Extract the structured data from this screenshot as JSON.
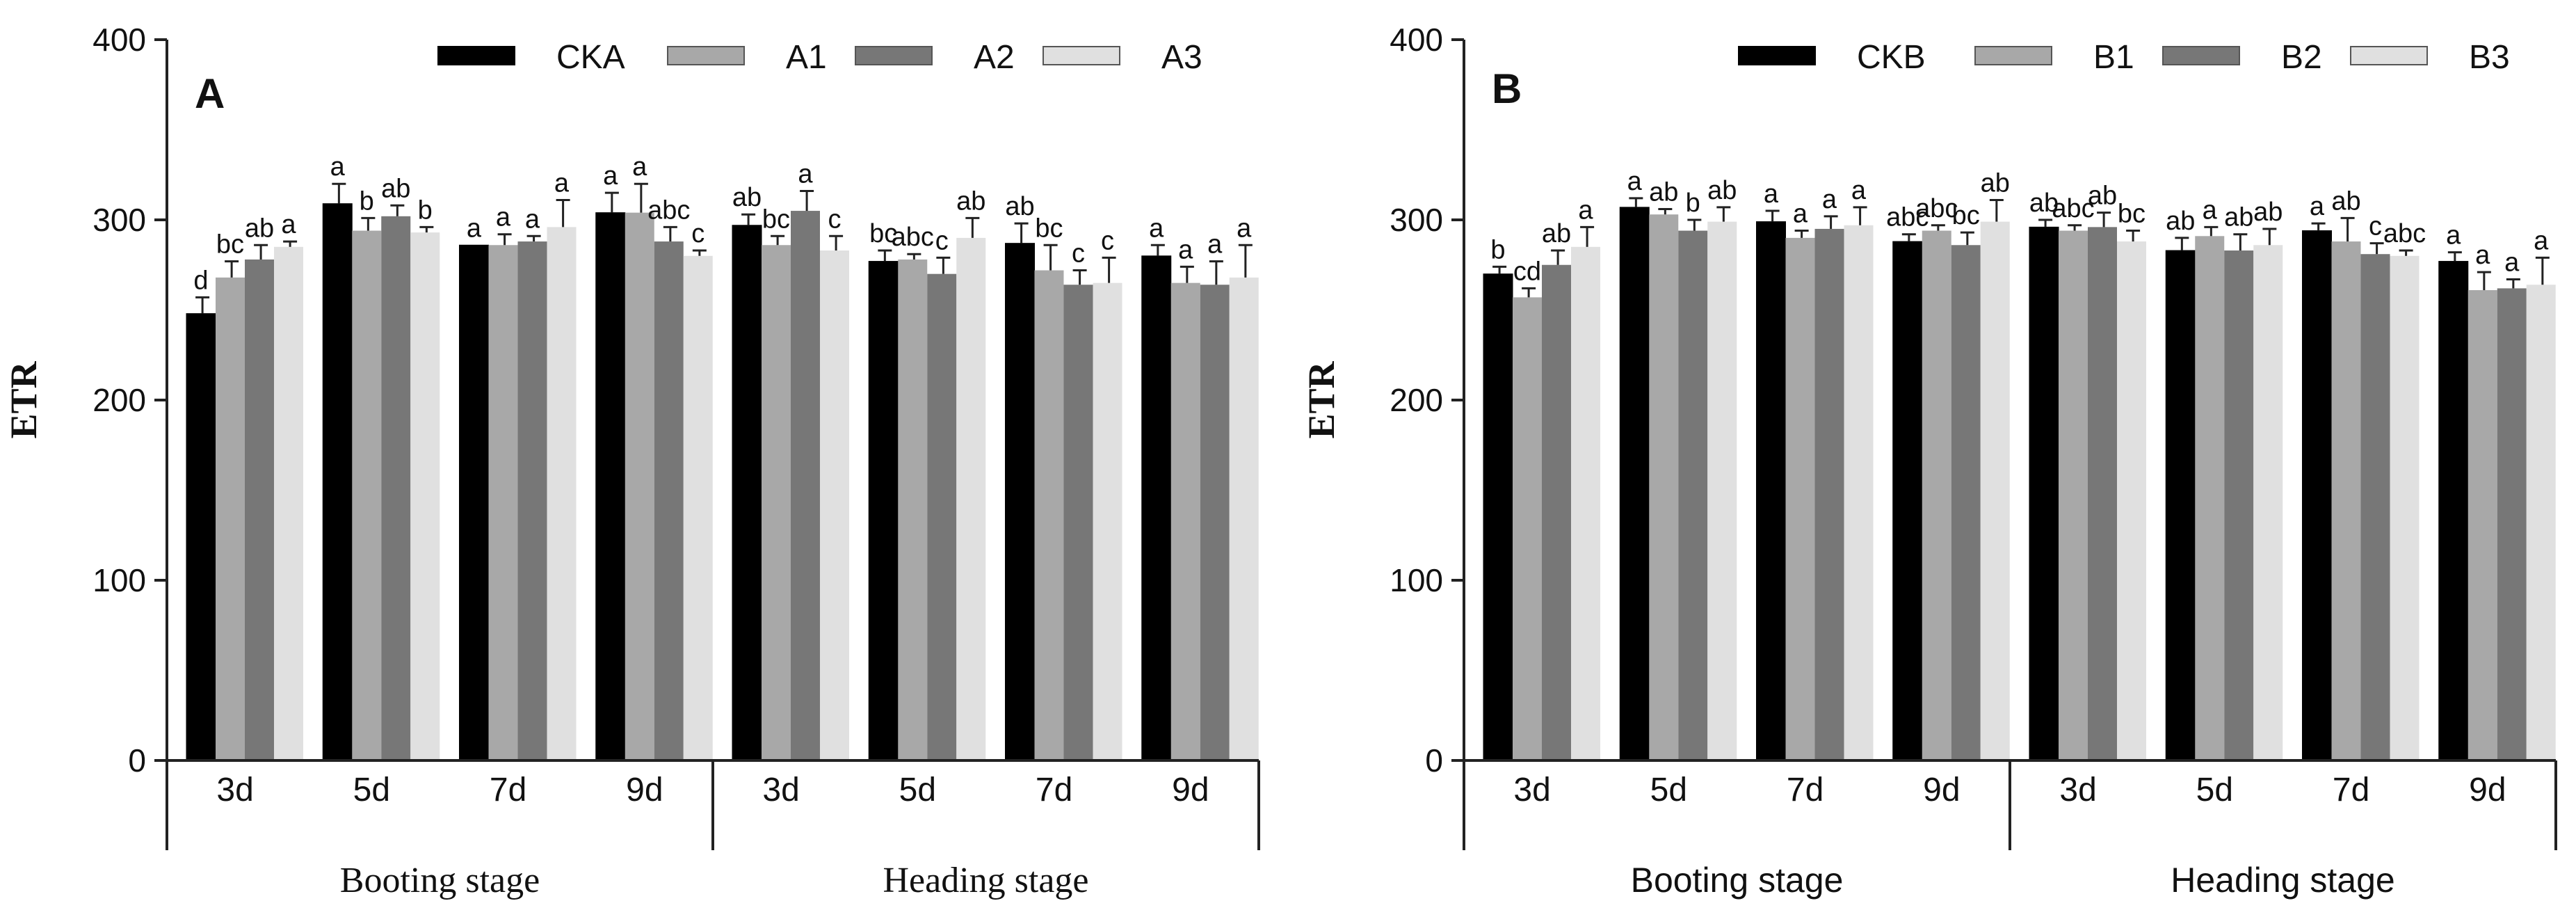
{
  "chart_data": [
    {
      "type": "bar",
      "panel_label": "A",
      "title": "",
      "ylabel": "ETR",
      "xlabel": "",
      "ylim": [
        0,
        400
      ],
      "yticks": [
        "0",
        "100",
        "200",
        "300",
        "400"
      ],
      "categories": [
        "3d",
        "5d",
        "7d",
        "9d",
        "3d",
        "5d",
        "7d",
        "9d"
      ],
      "groups": [
        "Booting stage",
        "Heading stage"
      ],
      "legend_position": "top-right",
      "series": [
        {
          "name": "CKA",
          "color": "#000000",
          "values": [
            248,
            309,
            286,
            304,
            297,
            277,
            287,
            280
          ],
          "errors": [
            9,
            11,
            0,
            11,
            6,
            6,
            11,
            6
          ],
          "labels": [
            "d",
            "a",
            "a",
            "a",
            "ab",
            "bc",
            "ab",
            "a"
          ]
        },
        {
          "name": "A1",
          "color": "#a8a8a8",
          "values": [
            268,
            294,
            286,
            304,
            286,
            278,
            272,
            265
          ],
          "errors": [
            9,
            7,
            6,
            16,
            5,
            3,
            14,
            9
          ],
          "labels": [
            "bc",
            "b",
            "a",
            "a",
            "bc",
            "abc",
            "bc",
            "a"
          ]
        },
        {
          "name": "A2",
          "color": "#777777",
          "values": [
            278,
            302,
            288,
            288,
            305,
            270,
            264,
            264
          ],
          "errors": [
            8,
            6,
            3,
            8,
            11,
            9,
            8,
            13
          ],
          "labels": [
            "ab",
            "ab",
            "a",
            "abc",
            "a",
            "c",
            "c",
            "a"
          ]
        },
        {
          "name": "A3",
          "color": "#e0e0e0",
          "values": [
            285,
            293,
            296,
            280,
            283,
            290,
            265,
            268
          ],
          "errors": [
            3,
            3,
            15,
            3,
            8,
            11,
            14,
            18
          ],
          "labels": [
            "a",
            "b",
            "a",
            "c",
            "c",
            "ab",
            "c",
            "a"
          ]
        }
      ]
    },
    {
      "type": "bar",
      "panel_label": "B",
      "title": "",
      "ylabel": "ETR",
      "xlabel": "",
      "ylim": [
        0,
        400
      ],
      "yticks": [
        "0",
        "100",
        "200",
        "300",
        "400"
      ],
      "categories": [
        "3d",
        "5d",
        "7d",
        "9d",
        "3d",
        "5d",
        "7d",
        "9d"
      ],
      "groups": [
        "Booting stage",
        "Heading stage"
      ],
      "legend_position": "top-right",
      "series": [
        {
          "name": "CKB",
          "color": "#000000",
          "values": [
            270,
            307,
            299,
            288,
            296,
            283,
            294,
            277
          ],
          "errors": [
            4,
            5,
            6,
            4,
            4,
            7,
            4,
            5
          ],
          "labels": [
            "b",
            "a",
            "a",
            "abc",
            "ab",
            "ab",
            "a",
            "a"
          ]
        },
        {
          "name": "B1",
          "color": "#a8a8a8",
          "values": [
            257,
            303,
            290,
            294,
            294,
            291,
            288,
            261
          ],
          "errors": [
            5,
            3,
            4,
            3,
            3,
            5,
            13,
            10
          ],
          "labels": [
            "cd",
            "ab",
            "a",
            "abc",
            "abc",
            "a",
            "ab",
            "a"
          ]
        },
        {
          "name": "B2",
          "color": "#777777",
          "values": [
            275,
            294,
            295,
            286,
            296,
            283,
            281,
            262
          ],
          "errors": [
            8,
            6,
            7,
            7,
            8,
            9,
            6,
            5
          ],
          "labels": [
            "ab",
            "b",
            "a",
            "bc",
            "ab",
            "ab",
            "c",
            "a"
          ]
        },
        {
          "name": "B3",
          "color": "#e0e0e0",
          "values": [
            285,
            299,
            297,
            299,
            288,
            286,
            280,
            264
          ],
          "errors": [
            11,
            8,
            10,
            12,
            6,
            9,
            3,
            15
          ],
          "labels": [
            "a",
            "ab",
            "a",
            "ab",
            "bc",
            "ab",
            "abc",
            "a"
          ]
        }
      ]
    }
  ]
}
